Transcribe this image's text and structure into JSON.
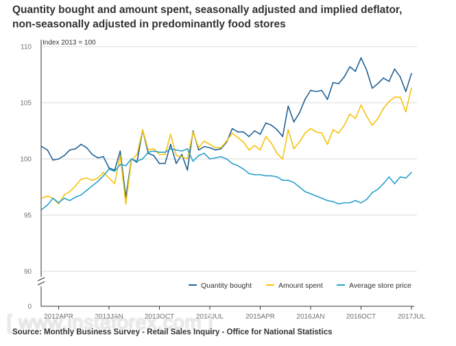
{
  "title_line1": "Quantity bought and amount spent, seasonally adjusted and implied deflator,",
  "title_line2": "non-seasonally adjusted in predominantly food stores",
  "source": "Source: Monthly Business Survey - Retail Sales Inquiry - Office for National Statistics",
  "watermark": "[ www.instaforex.com ]",
  "chart_data": {
    "type": "line",
    "units_label": "Index 2013 = 100",
    "x_tick_labels": [
      "2012APR",
      "2013JAN",
      "2013OCT",
      "2014JUL",
      "2015APR",
      "2016JAN",
      "2016OCT",
      "2017JUL"
    ],
    "x_tick_indices": [
      3,
      12,
      21,
      30,
      39,
      48,
      57,
      66
    ],
    "y_ticks": [
      90,
      95,
      100,
      105,
      110
    ],
    "y_zero_label": "0",
    "ylim": [
      88.5,
      110
    ],
    "axis_break": true,
    "grid": true,
    "legend_position": "bottom-right",
    "period": {
      "start": "2012JAN",
      "end": "2017JUL",
      "frequency": "monthly"
    },
    "series": [
      {
        "name": "Quantity bought",
        "color": "#206095",
        "values": [
          101.1,
          100.8,
          99.9,
          100.0,
          100.3,
          100.8,
          100.9,
          101.3,
          101.0,
          100.4,
          100.1,
          100.2,
          99.2,
          99.0,
          100.7,
          96.6,
          100.0,
          99.7,
          102.6,
          100.5,
          100.3,
          99.6,
          99.6,
          101.3,
          99.6,
          100.4,
          99.0,
          102.5,
          100.8,
          101.1,
          101.0,
          100.8,
          100.9,
          101.5,
          102.7,
          102.4,
          102.4,
          102.0,
          102.5,
          102.2,
          103.2,
          103.0,
          102.6,
          102.0,
          104.7,
          103.3,
          104.1,
          105.3,
          106.1,
          106.0,
          106.1,
          105.3,
          106.8,
          106.7,
          107.3,
          108.2,
          107.8,
          109.0,
          107.9,
          106.3,
          106.7,
          107.2,
          106.9,
          108.0,
          107.3,
          106.0,
          107.6
        ]
      },
      {
        "name": "Amount spent",
        "color": "#F6C20A",
        "values": [
          96.5,
          96.7,
          96.5,
          96.0,
          96.8,
          97.1,
          97.6,
          98.2,
          98.3,
          98.1,
          98.3,
          98.8,
          98.3,
          97.8,
          100.3,
          96.0,
          99.9,
          100.4,
          102.6,
          100.8,
          100.9,
          100.4,
          100.4,
          102.2,
          100.3,
          100.2,
          100.0,
          102.4,
          101.0,
          101.6,
          101.3,
          101.0,
          101.0,
          101.6,
          102.3,
          101.9,
          101.5,
          100.8,
          101.2,
          100.8,
          102.0,
          101.4,
          100.5,
          100.0,
          102.6,
          100.9,
          101.5,
          102.3,
          102.7,
          102.4,
          102.3,
          101.3,
          102.6,
          102.3,
          103.0,
          104.0,
          103.6,
          104.8,
          103.8,
          103.0,
          103.6,
          104.5,
          105.1,
          105.5,
          105.5,
          104.2,
          106.3
        ]
      },
      {
        "name": "Average store price",
        "color": "#27A0CC",
        "values": [
          95.5,
          95.9,
          96.5,
          96.1,
          96.5,
          96.3,
          96.6,
          96.8,
          97.2,
          97.6,
          98.0,
          98.5,
          99.1,
          98.9,
          99.5,
          99.4,
          100.0,
          99.8,
          100.0,
          100.6,
          100.7,
          100.6,
          100.6,
          100.9,
          100.8,
          100.7,
          100.9,
          99.8,
          100.3,
          100.5,
          100.0,
          100.1,
          100.2,
          100.0,
          99.6,
          99.4,
          99.1,
          98.7,
          98.6,
          98.6,
          98.5,
          98.5,
          98.4,
          98.1,
          98.1,
          97.9,
          97.5,
          97.1,
          96.9,
          96.7,
          96.5,
          96.3,
          96.2,
          96.0,
          96.1,
          96.1,
          96.3,
          96.1,
          96.4,
          97.0,
          97.3,
          97.8,
          98.4,
          97.8,
          98.4,
          98.3,
          98.8
        ]
      }
    ]
  }
}
